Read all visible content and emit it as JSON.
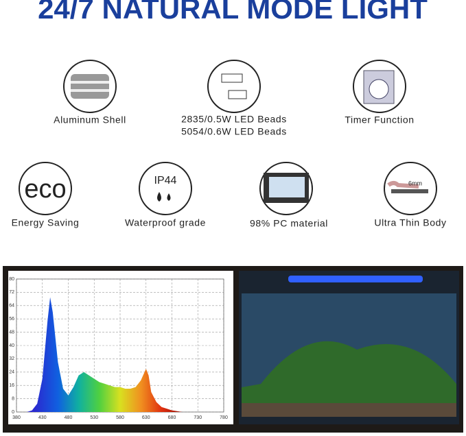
{
  "title": "24/7 NATURAL MODE LIGHT",
  "features": [
    {
      "label": "Aluminum Shell"
    },
    {
      "label": "2835/0.5W LED Beads",
      "label2": "5054/0.6W LED Beads"
    },
    {
      "label": "Timer Function"
    },
    {
      "label": "Energy Saving",
      "icon_text": "eco"
    },
    {
      "label": "Waterproof grade",
      "icon_text": "IP44"
    },
    {
      "label": "98% PC material"
    },
    {
      "label": "Ultra Thin Body",
      "icon_text": "6mm"
    }
  ],
  "chart_data": {
    "type": "area",
    "x": [
      380,
      400,
      410,
      420,
      430,
      440,
      445,
      450,
      460,
      470,
      480,
      490,
      500,
      510,
      520,
      530,
      540,
      550,
      560,
      570,
      580,
      590,
      600,
      610,
      620,
      630,
      635,
      640,
      650,
      660,
      670,
      680,
      700,
      780
    ],
    "values": [
      0,
      0,
      1,
      5,
      20,
      55,
      69,
      60,
      30,
      14,
      10,
      15,
      22,
      24,
      22,
      20,
      18,
      17,
      16,
      15,
      15,
      14,
      14,
      15,
      19,
      26,
      22,
      12,
      6,
      3,
      2,
      1,
      0,
      0
    ],
    "xlim": [
      380,
      780
    ],
    "xticks": [
      380,
      430,
      480,
      530,
      580,
      630,
      680,
      730,
      780
    ],
    "ylim": [
      0,
      80
    ],
    "yticks": [
      0,
      8,
      16,
      24,
      32,
      40,
      48,
      56,
      64,
      72,
      80
    ],
    "grid": true
  }
}
